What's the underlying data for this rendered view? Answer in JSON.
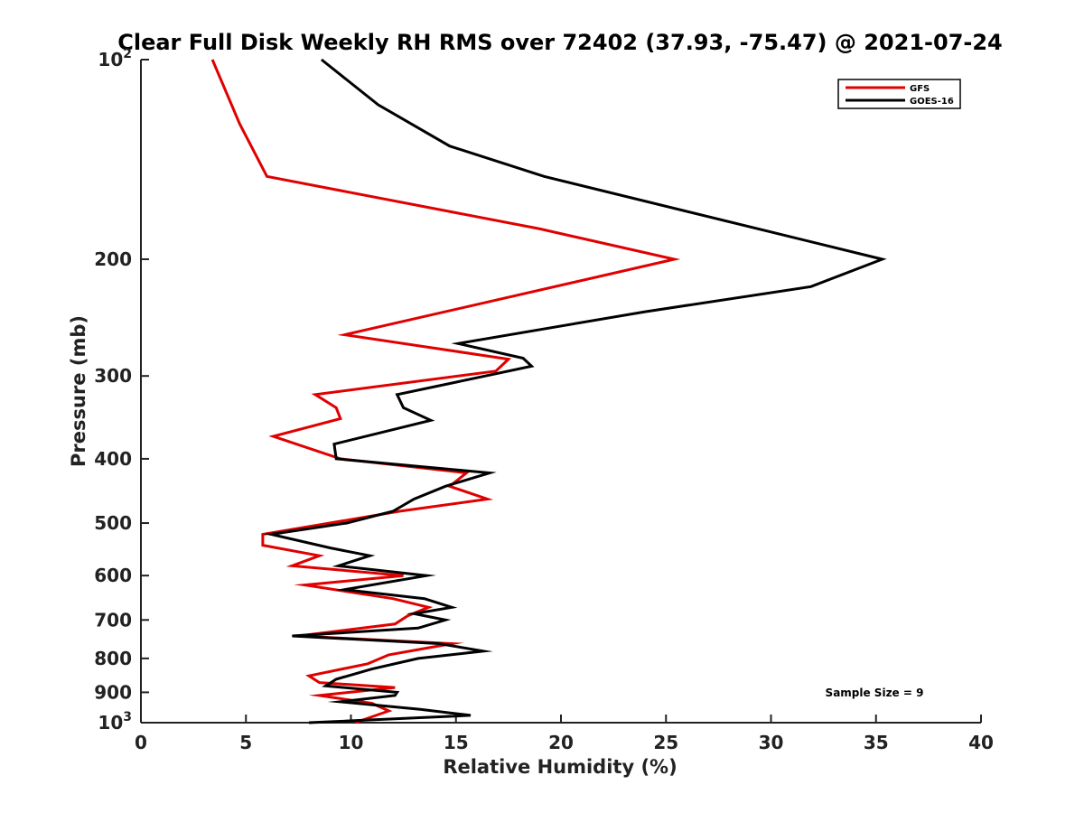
{
  "chart_data": {
    "type": "line",
    "title": "Clear Full Disk Weekly RH RMS over 72402 (37.93, -75.47) @ 2021-07-24",
    "xlabel": "Relative Humidity (%)",
    "ylabel": "Pressure (mb)",
    "xlim": [
      0,
      40
    ],
    "ylim": [
      100,
      1000
    ],
    "yscale": "log",
    "x_ticks": [
      0,
      5,
      10,
      15,
      20,
      25,
      30,
      35,
      40
    ],
    "x_tick_labels": [
      "0",
      "5",
      "10",
      "15",
      "20",
      "25",
      "30",
      "35",
      "40"
    ],
    "y_ticks": [
      100,
      200,
      300,
      400,
      500,
      600,
      700,
      800,
      900,
      1000
    ],
    "y_tick_labels": [
      {
        "base": "10",
        "exp": "2"
      },
      {
        "base": "200",
        "exp": ""
      },
      {
        "base": "300",
        "exp": ""
      },
      {
        "base": "400",
        "exp": ""
      },
      {
        "base": "500",
        "exp": ""
      },
      {
        "base": "600",
        "exp": ""
      },
      {
        "base": "700",
        "exp": ""
      },
      {
        "base": "800",
        "exp": ""
      },
      {
        "base": "900",
        "exp": ""
      },
      {
        "base": "10",
        "exp": "3"
      }
    ],
    "legend_position": "top-right",
    "annotation": "Sample Size = 9",
    "series": [
      {
        "name": "GFS",
        "color": "#e00000",
        "points": [
          [
            3.4,
            100
          ],
          [
            4.7,
            125
          ],
          [
            6.0,
            150
          ],
          [
            19.0,
            180
          ],
          [
            25.4,
            200
          ],
          [
            9.7,
            260
          ],
          [
            17.5,
            283
          ],
          [
            16.9,
            295
          ],
          [
            8.3,
            320
          ],
          [
            9.3,
            335
          ],
          [
            9.5,
            348
          ],
          [
            6.3,
            370
          ],
          [
            9.5,
            400
          ],
          [
            15.5,
            420
          ],
          [
            14.7,
            440
          ],
          [
            16.5,
            460
          ],
          [
            12.3,
            480
          ],
          [
            9.0,
            500
          ],
          [
            5.8,
            520
          ],
          [
            5.8,
            540
          ],
          [
            8.5,
            560
          ],
          [
            7.2,
            580
          ],
          [
            12.5,
            600
          ],
          [
            7.8,
            620
          ],
          [
            12.0,
            650
          ],
          [
            13.7,
            670
          ],
          [
            12.7,
            690
          ],
          [
            12.1,
            710
          ],
          [
            7.5,
            740
          ],
          [
            14.8,
            760
          ],
          [
            11.8,
            790
          ],
          [
            10.8,
            815
          ],
          [
            8.0,
            850
          ],
          [
            8.5,
            870
          ],
          [
            12.1,
            885
          ],
          [
            8.5,
            910
          ],
          [
            11.0,
            935
          ],
          [
            11.8,
            960
          ],
          [
            10.2,
            1000
          ]
        ]
      },
      {
        "name": "GOES-16",
        "color": "#000000",
        "points": [
          [
            8.6,
            100
          ],
          [
            11.3,
            117
          ],
          [
            14.7,
            135
          ],
          [
            19.2,
            150
          ],
          [
            35.3,
            200
          ],
          [
            31.9,
            220
          ],
          [
            24.0,
            240
          ],
          [
            15.1,
            268
          ],
          [
            18.2,
            282
          ],
          [
            18.6,
            290
          ],
          [
            12.2,
            320
          ],
          [
            12.5,
            335
          ],
          [
            13.8,
            350
          ],
          [
            9.2,
            380
          ],
          [
            9.3,
            400
          ],
          [
            16.6,
            420
          ],
          [
            14.5,
            440
          ],
          [
            13.0,
            460
          ],
          [
            12.0,
            480
          ],
          [
            9.8,
            500
          ],
          [
            6.2,
            520
          ],
          [
            9.0,
            545
          ],
          [
            10.9,
            560
          ],
          [
            9.4,
            580
          ],
          [
            13.6,
            600
          ],
          [
            9.7,
            630
          ],
          [
            13.5,
            650
          ],
          [
            14.8,
            670
          ],
          [
            13.0,
            685
          ],
          [
            14.5,
            700
          ],
          [
            13.2,
            720
          ],
          [
            7.2,
            740
          ],
          [
            14.2,
            760
          ],
          [
            16.3,
            780
          ],
          [
            13.2,
            800
          ],
          [
            11.0,
            830
          ],
          [
            9.3,
            860
          ],
          [
            8.8,
            880
          ],
          [
            12.2,
            900
          ],
          [
            12.1,
            910
          ],
          [
            9.5,
            930
          ],
          [
            13.3,
            955
          ],
          [
            15.7,
            975
          ],
          [
            8.0,
            1000
          ]
        ]
      }
    ]
  }
}
